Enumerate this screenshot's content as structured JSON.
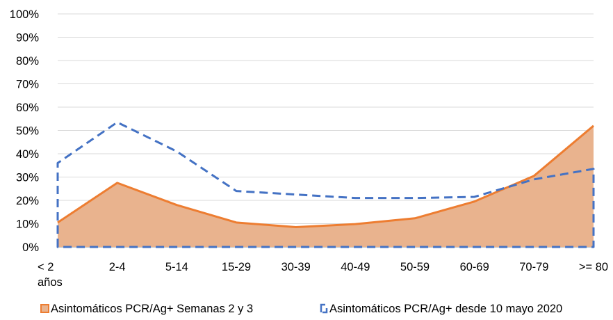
{
  "chart_data": {
    "type": "area",
    "categories": [
      "< 2 años",
      "2-4",
      "5-14",
      "15-29",
      "30-39",
      "40-49",
      "50-59",
      "60-69",
      "70-79",
      ">= 80"
    ],
    "category_lines": [
      [
        "< 2",
        "años"
      ],
      [
        "2-4"
      ],
      [
        "5-14"
      ],
      [
        "15-29"
      ],
      [
        "30-39"
      ],
      [
        "40-49"
      ],
      [
        "50-59"
      ],
      [
        "60-69"
      ],
      [
        "70-79"
      ],
      [
        ">= 80"
      ]
    ],
    "y_ticks": [
      "0%",
      "10%",
      "20%",
      "30%",
      "40%",
      "50%",
      "60%",
      "70%",
      "80%",
      "90%",
      "100%"
    ],
    "ylim": [
      0,
      100
    ],
    "y_unit": "%",
    "grid": true,
    "legend_position": "bottom",
    "series": [
      {
        "name": "Asintomáticos PCR/Ag+ Semanas 2 y 3",
        "style": "filled-area-solid-line",
        "line_color": "#ED7D31",
        "fill_color": "#E9B38E",
        "values": [
          10.5,
          27.5,
          18,
          10.5,
          8.5,
          9.8,
          12.3,
          19.5,
          30.5,
          52
        ]
      },
      {
        "name": "Asintomáticos PCR/Ag+ desde 10 mayo 2020",
        "style": "dashed-line-no-fill",
        "line_color": "#4472C4",
        "values": [
          36,
          53.5,
          41,
          24,
          22.5,
          21,
          21,
          21.5,
          29,
          33.5
        ]
      }
    ]
  }
}
